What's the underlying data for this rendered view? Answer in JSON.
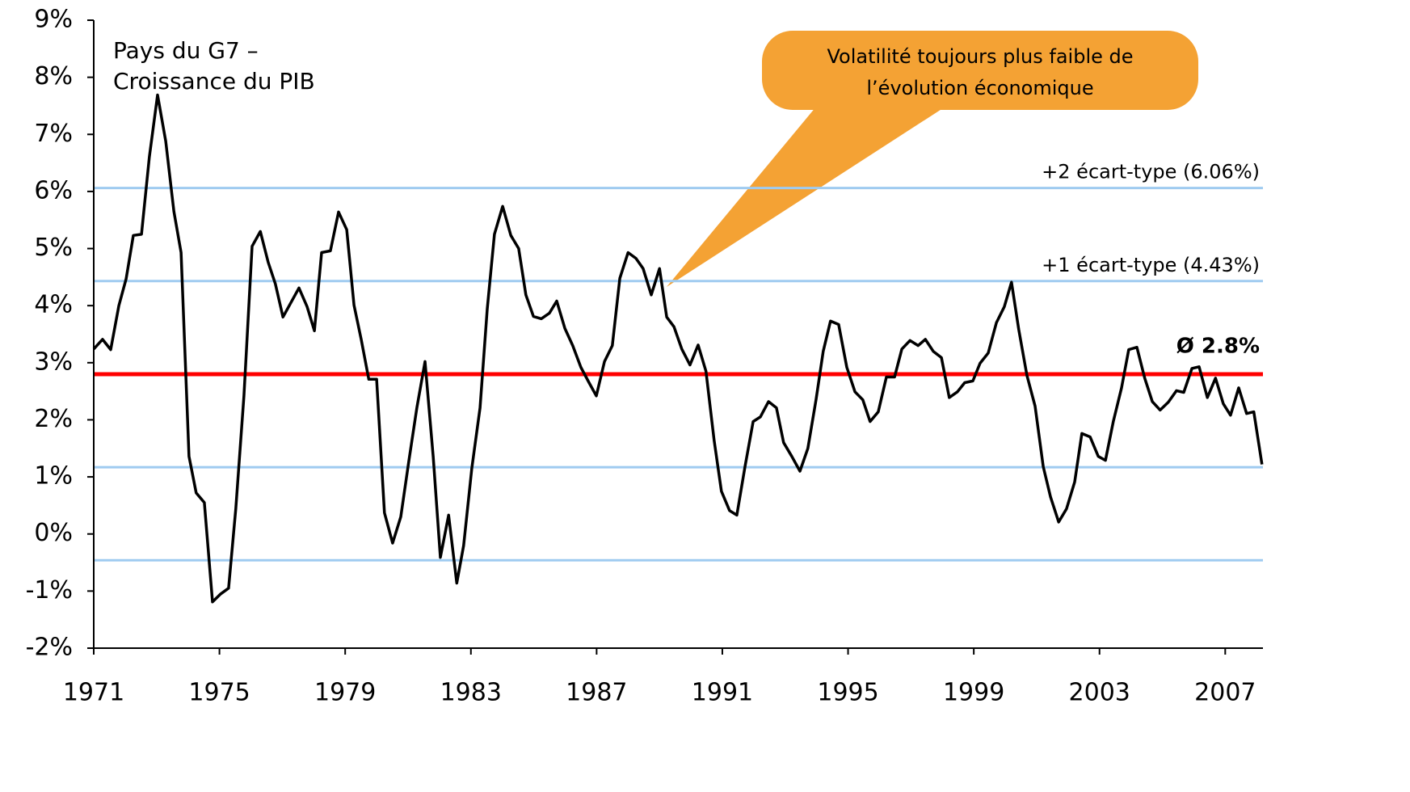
{
  "chart_data": {
    "type": "line",
    "title": [
      "Pays du G7 –",
      "Croissance du PIB"
    ],
    "annotation": [
      "Volatilité toujours plus faible de",
      "l’évolution économique"
    ],
    "xlim": [
      1971,
      2008.2
    ],
    "xticks": [
      1971,
      1975,
      1979,
      1983,
      1987,
      1991,
      1995,
      1999,
      2003,
      2007
    ],
    "ylim": [
      -2,
      9
    ],
    "yticks": [
      {
        "value": -2,
        "label": "-2%"
      },
      {
        "value": -1,
        "label": "-1%"
      },
      {
        "value": 0,
        "label": "0%"
      },
      {
        "value": 1,
        "label": "1%"
      },
      {
        "value": 2,
        "label": "2%"
      },
      {
        "value": 3,
        "label": "3%"
      },
      {
        "value": 4,
        "label": "4%"
      },
      {
        "value": 5,
        "label": "5%"
      },
      {
        "value": 6,
        "label": "6%"
      },
      {
        "value": 7,
        "label": "7%"
      },
      {
        "value": 8,
        "label": "8%"
      },
      {
        "value": 9,
        "label": "9%"
      }
    ],
    "reference_lines": [
      {
        "value": 6.06,
        "label": "+2 écart-type (6.06%)",
        "color": "#9fcbf0"
      },
      {
        "value": 4.43,
        "label": "+1 écart-type (4.43%)",
        "color": "#9fcbf0"
      },
      {
        "value": 2.8,
        "label": "Ø 2.8%",
        "color": "#ff0000"
      },
      {
        "value": 1.17,
        "color": "#9fcbf0"
      },
      {
        "value": -0.46,
        "color": "#9fcbf0"
      }
    ],
    "series": [
      {
        "color": "#000000",
        "x": [
          1971.0,
          1971.28,
          1971.54,
          1971.8,
          1972.03,
          1972.26,
          1972.52,
          1972.77,
          1973.03,
          1973.29,
          1973.55,
          1973.78,
          1974.03,
          1974.26,
          1974.52,
          1974.78,
          1975.04,
          1975.29,
          1975.52,
          1975.78,
          1976.04,
          1976.3,
          1976.55,
          1976.78,
          1977.02,
          1977.27,
          1977.53,
          1977.79,
          1978.02,
          1978.25,
          1978.53,
          1978.79,
          1979.05,
          1979.28,
          1979.51,
          1979.75,
          1980.0,
          1980.25,
          1980.51,
          1980.77,
          1981.03,
          1981.28,
          1981.54,
          1981.8,
          1982.03,
          1982.29,
          1982.55,
          1982.77,
          1983.03,
          1983.29,
          1983.52,
          1983.75,
          1984.01,
          1984.27,
          1984.52,
          1984.75,
          1984.99,
          1985.24,
          1985.5,
          1985.73,
          1985.99,
          1986.24,
          1986.5,
          1986.76,
          1986.99,
          1987.25,
          1987.5,
          1987.74,
          1988.0,
          1988.25,
          1988.48,
          1988.74,
          1989.0,
          1989.23,
          1989.46,
          1989.71,
          1989.97,
          1990.23,
          1990.48,
          1990.74,
          1990.97,
          1991.23,
          1991.46,
          1991.72,
          1991.98,
          1992.21,
          1992.47,
          1992.72,
          1992.95,
          1993.21,
          1993.47,
          1993.72,
          1993.98,
          1994.21,
          1994.44,
          1994.7,
          1994.96,
          1995.22,
          1995.47,
          1995.7,
          1995.96,
          1996.22,
          1996.48,
          1996.71,
          1996.97,
          1997.23,
          1997.46,
          1997.71,
          1997.97,
          1998.22,
          1998.48,
          1998.71,
          1998.97,
          1999.2,
          1999.46,
          1999.72,
          1999.97,
          2000.2,
          2000.43,
          2000.69,
          2000.95,
          2001.21,
          2001.44,
          2001.7,
          2001.95,
          2002.21,
          2002.44,
          2002.7,
          2002.96,
          2003.19,
          2003.44,
          2003.7,
          2003.93,
          2004.19,
          2004.44,
          2004.68,
          2004.93,
          2005.19,
          2005.45,
          2005.68,
          2005.94,
          2006.17,
          2006.43,
          2006.69,
          2006.94,
          2007.17,
          2007.43,
          2007.68,
          2007.91,
          2008.17
        ],
        "values": [
          3.24,
          3.41,
          3.23,
          4.0,
          4.47,
          5.23,
          5.25,
          6.6,
          7.69,
          6.88,
          5.65,
          4.93,
          1.36,
          0.72,
          0.55,
          -1.19,
          -1.05,
          -0.95,
          0.44,
          2.42,
          5.04,
          5.3,
          4.76,
          4.38,
          3.8,
          4.05,
          4.31,
          3.98,
          3.56,
          4.93,
          4.96,
          5.64,
          5.33,
          4.01,
          3.41,
          2.71,
          2.71,
          0.37,
          -0.16,
          0.3,
          1.29,
          2.21,
          3.02,
          1.36,
          -0.41,
          0.33,
          -0.86,
          -0.2,
          1.15,
          2.21,
          3.94,
          5.25,
          5.74,
          5.23,
          5.0,
          4.19,
          3.81,
          3.77,
          3.87,
          4.08,
          3.6,
          3.3,
          2.92,
          2.65,
          2.42,
          3.02,
          3.3,
          4.48,
          4.93,
          4.83,
          4.65,
          4.19,
          4.65,
          3.8,
          3.63,
          3.24,
          2.96,
          3.31,
          2.85,
          1.64,
          0.75,
          0.41,
          0.33,
          1.18,
          1.97,
          2.05,
          2.32,
          2.21,
          1.6,
          1.36,
          1.1,
          1.5,
          2.35,
          3.2,
          3.73,
          3.67,
          2.92,
          2.49,
          2.35,
          1.97,
          2.14,
          2.75,
          2.75,
          3.24,
          3.39,
          3.3,
          3.41,
          3.2,
          3.09,
          2.39,
          2.49,
          2.65,
          2.68,
          2.99,
          3.17,
          3.7,
          3.98,
          4.41,
          3.58,
          2.78,
          2.24,
          1.18,
          0.65,
          0.21,
          0.44,
          0.91,
          1.76,
          1.7,
          1.36,
          1.29,
          1.97,
          2.56,
          3.23,
          3.27,
          2.73,
          2.32,
          2.17,
          2.31,
          2.51,
          2.48,
          2.9,
          2.93,
          2.39,
          2.73,
          2.28,
          2.08,
          2.56,
          2.11,
          2.14,
          1.22
        ]
      }
    ]
  }
}
